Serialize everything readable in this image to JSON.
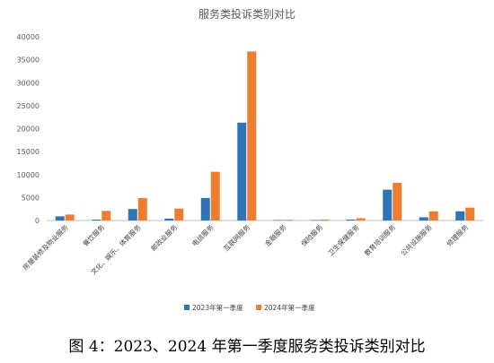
{
  "chart_data": {
    "type": "bar",
    "title": "服务类投诉类别对比",
    "categories": [
      "房屋装修及物业服务",
      "餐饮服务",
      "文化、娱乐、体育服务",
      "邮政业服务",
      "电信服务",
      "互联网服务",
      "金融服务",
      "保险服务",
      "卫生保健服务",
      "教育培训服务",
      "公共设施服务",
      "修理服务"
    ],
    "series": [
      {
        "name": "2023年第一季度",
        "color": "#2E75B6",
        "values": [
          900,
          200,
          2500,
          400,
          4900,
          21300,
          100,
          100,
          200,
          6700,
          700,
          2000
        ]
      },
      {
        "name": "2024年第一季度",
        "color": "#ED7D31",
        "values": [
          1300,
          2100,
          4900,
          2600,
          10600,
          36800,
          150,
          200,
          500,
          8200,
          2000,
          2800
        ]
      }
    ],
    "yticks": [
      0,
      5000,
      10000,
      15000,
      20000,
      25000,
      30000,
      35000,
      40000
    ],
    "ylim": [
      0,
      40000
    ],
    "grid": false,
    "legend_position": "bottom"
  },
  "caption": "图 4：2023、2024 年第一季度服务类投诉类别对比"
}
